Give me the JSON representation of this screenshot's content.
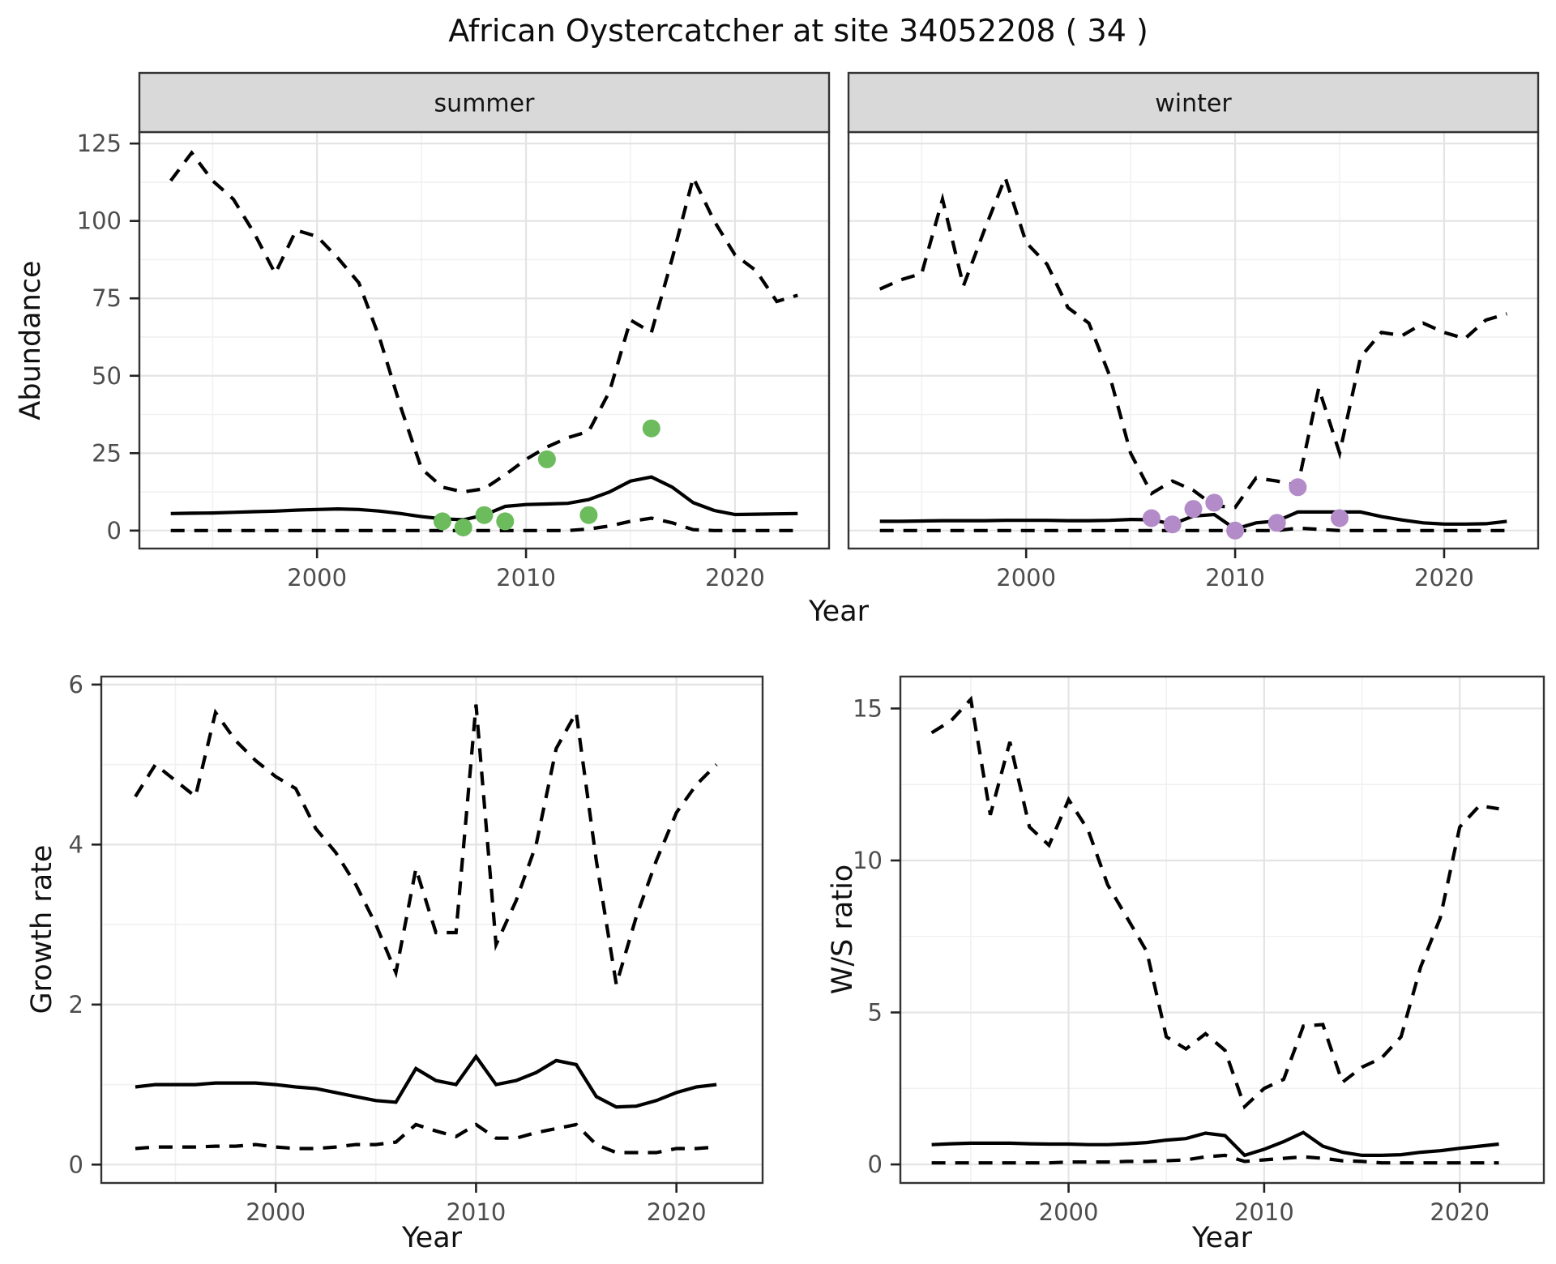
{
  "title": "African Oystercatcher at site 34052208 ( 34 )",
  "colors": {
    "line": "#000000",
    "summer_points": "#6cbb5c",
    "winter_points": "#b28bc8",
    "strip_fill": "#d9d9d9",
    "panel_border": "#333333",
    "grid_major": "#e4e4e4",
    "grid_minor": "#f1f1f1"
  },
  "chart_data": [
    {
      "id": "summer-abundance",
      "type": "line",
      "facet_label": "summer",
      "xlabel": "Year",
      "ylabel": "Abundance",
      "xlim": [
        1991.5,
        2024.5
      ],
      "ylim": [
        -5.8,
        128.7
      ],
      "xticks": [
        2000,
        2010,
        2020
      ],
      "yticks": [
        0,
        25,
        50,
        75,
        100,
        125
      ],
      "grid": "major+minor",
      "legend": "none",
      "x": [
        1993,
        1994,
        1995,
        1996,
        1997,
        1998,
        1999,
        2000,
        2001,
        2002,
        2003,
        2004,
        2005,
        2006,
        2007,
        2008,
        2009,
        2010,
        2011,
        2012,
        2013,
        2014,
        2015,
        2016,
        2017,
        2018,
        2019,
        2020,
        2021,
        2022,
        2023
      ],
      "series": [
        {
          "name": "upper-ci",
          "style": "dashed",
          "values": [
            113,
            122,
            113,
            107,
            96,
            83,
            97,
            95,
            88,
            80,
            62,
            40,
            20,
            14,
            12.5,
            13.5,
            18,
            23,
            27,
            30,
            32,
            45,
            68,
            64,
            88,
            114,
            100,
            89,
            84,
            74,
            76
          ]
        },
        {
          "name": "median",
          "style": "solid",
          "values": [
            5.5,
            5.6,
            5.7,
            5.9,
            6.1,
            6.3,
            6.6,
            6.8,
            7.0,
            6.8,
            6.3,
            5.5,
            4.5,
            3.8,
            3.5,
            5.0,
            7.8,
            8.4,
            8.6,
            8.8,
            10,
            12.5,
            16,
            17.3,
            14,
            9,
            6.5,
            5.2,
            5.3,
            5.4,
            5.5
          ]
        },
        {
          "name": "lower-ci",
          "style": "dashed",
          "values": [
            0,
            0,
            0,
            0,
            0,
            0,
            0,
            0,
            0,
            0,
            0,
            0,
            0,
            0,
            0,
            0,
            0,
            0,
            0,
            0,
            0.5,
            1.5,
            3,
            4,
            2.5,
            0.3,
            0,
            0,
            0,
            0,
            0
          ]
        }
      ],
      "points": {
        "name": "observed-count",
        "color": "#6cbb5c",
        "x": [
          2006,
          2007,
          2008,
          2009,
          2011,
          2013,
          2016
        ],
        "y": [
          3,
          1,
          5,
          3,
          23,
          5,
          33
        ]
      }
    },
    {
      "id": "winter-abundance",
      "type": "line",
      "facet_label": "winter",
      "xlabel": "Year",
      "ylabel": "Abundance",
      "xlim": [
        1991.5,
        2024.5
      ],
      "ylim": [
        -5.8,
        128.7
      ],
      "xticks": [
        2000,
        2010,
        2020
      ],
      "yticks": [
        0,
        25,
        50,
        75,
        100,
        125
      ],
      "grid": "major+minor",
      "legend": "none",
      "x": [
        1993,
        1994,
        1995,
        1996,
        1997,
        1998,
        1999,
        2000,
        2001,
        2002,
        2003,
        2004,
        2005,
        2006,
        2007,
        2008,
        2009,
        2010,
        2011,
        2012,
        2013,
        2014,
        2015,
        2016,
        2017,
        2018,
        2019,
        2020,
        2021,
        2022,
        2023
      ],
      "series": [
        {
          "name": "upper-ci",
          "style": "dashed",
          "values": [
            78,
            81,
            83,
            107,
            79,
            97,
            114,
            93,
            86,
            72,
            67,
            50,
            25,
            12,
            16,
            13,
            8,
            7.5,
            17,
            16,
            14.5,
            46,
            25,
            56,
            64,
            63,
            67,
            64,
            62,
            68,
            70
          ]
        },
        {
          "name": "median",
          "style": "solid",
          "values": [
            3,
            3,
            3.1,
            3.2,
            3.2,
            3.2,
            3.3,
            3.3,
            3.3,
            3.2,
            3.2,
            3.3,
            3.6,
            3.5,
            2.1,
            4.7,
            5.2,
            0.5,
            2.5,
            3.1,
            6,
            6,
            6,
            6,
            4.5,
            3.4,
            2.5,
            2.1,
            2.1,
            2.2,
            3
          ]
        },
        {
          "name": "lower-ci",
          "style": "dashed",
          "values": [
            0,
            0,
            0,
            0,
            0,
            0,
            0,
            0,
            0,
            0,
            0,
            0,
            0,
            0,
            0,
            0,
            0,
            0,
            0,
            0,
            0.8,
            0.4,
            0,
            0,
            0,
            0,
            0,
            0,
            0,
            0,
            0
          ]
        }
      ],
      "points": {
        "name": "observed-count",
        "color": "#b28bc8",
        "x": [
          2006,
          2007,
          2008,
          2009,
          2010,
          2012,
          2013,
          2015
        ],
        "y": [
          4,
          2,
          7,
          9,
          0,
          2.5,
          14,
          4
        ]
      }
    },
    {
      "id": "growth-rate",
      "type": "line",
      "facet_label": null,
      "xlabel": "Year",
      "ylabel": "Growth rate",
      "xlim": [
        1991.3,
        2024.3
      ],
      "ylim": [
        -0.23,
        6.1
      ],
      "xticks": [
        2000,
        2010,
        2020
      ],
      "yticks": [
        0,
        2,
        4,
        6
      ],
      "grid": "major+minor",
      "legend": "none",
      "x": [
        1993,
        1994,
        1995,
        1996,
        1997,
        1998,
        1999,
        2000,
        2001,
        2002,
        2003,
        2004,
        2005,
        2006,
        2007,
        2008,
        2009,
        2010,
        2011,
        2012,
        2013,
        2014,
        2015,
        2016,
        2017,
        2018,
        2019,
        2020,
        2021,
        2022
      ],
      "series": [
        {
          "name": "upper-ci",
          "style": "dashed",
          "values": [
            4.6,
            5.0,
            4.8,
            4.6,
            5.65,
            5.3,
            5.05,
            4.85,
            4.7,
            4.2,
            3.9,
            3.5,
            3.0,
            2.4,
            3.7,
            2.9,
            2.9,
            5.75,
            2.75,
            3.3,
            4.0,
            5.2,
            5.65,
            3.8,
            2.25,
            3.1,
            3.8,
            4.4,
            4.75,
            5.0
          ]
        },
        {
          "name": "median",
          "style": "solid",
          "values": [
            0.97,
            1.0,
            1.0,
            1.0,
            1.02,
            1.02,
            1.02,
            1.0,
            0.97,
            0.95,
            0.9,
            0.85,
            0.8,
            0.78,
            1.2,
            1.05,
            1.0,
            1.35,
            1.0,
            1.05,
            1.15,
            1.3,
            1.25,
            0.85,
            0.72,
            0.73,
            0.8,
            0.9,
            0.97,
            1.0
          ]
        },
        {
          "name": "lower-ci",
          "style": "dashed",
          "values": [
            0.2,
            0.22,
            0.22,
            0.22,
            0.23,
            0.23,
            0.25,
            0.22,
            0.2,
            0.2,
            0.22,
            0.25,
            0.25,
            0.28,
            0.5,
            0.42,
            0.35,
            0.5,
            0.33,
            0.33,
            0.4,
            0.45,
            0.5,
            0.25,
            0.15,
            0.15,
            0.15,
            0.2,
            0.2,
            0.22
          ]
        }
      ],
      "points": null
    },
    {
      "id": "ws-ratio",
      "type": "line",
      "facet_label": null,
      "xlabel": "Year",
      "ylabel": "W/S ratio",
      "xlim": [
        1991.4,
        2024.3
      ],
      "ylim": [
        -0.61,
        16.05
      ],
      "xticks": [
        2000,
        2010,
        2020
      ],
      "yticks": [
        0,
        5,
        10,
        15
      ],
      "grid": "major+minor",
      "legend": "none",
      "x": [
        1993,
        1994,
        1995,
        1996,
        1997,
        1998,
        1999,
        2000,
        2001,
        2002,
        2003,
        2004,
        2005,
        2006,
        2007,
        2008,
        2009,
        2010,
        2011,
        2012,
        2013,
        2014,
        2015,
        2016,
        2017,
        2018,
        2019,
        2020,
        2021,
        2022
      ],
      "series": [
        {
          "name": "upper-ci",
          "style": "dashed",
          "values": [
            14.2,
            14.6,
            15.3,
            11.5,
            13.9,
            11.1,
            10.5,
            12.0,
            11.0,
            9.2,
            8.1,
            7.0,
            4.2,
            3.8,
            4.3,
            3.75,
            1.9,
            2.5,
            2.8,
            4.55,
            4.6,
            2.7,
            3.2,
            3.5,
            4.2,
            6.5,
            8.1,
            11.1,
            11.8,
            11.7
          ]
        },
        {
          "name": "median",
          "style": "solid",
          "values": [
            0.65,
            0.68,
            0.7,
            0.7,
            0.7,
            0.68,
            0.67,
            0.67,
            0.65,
            0.65,
            0.68,
            0.72,
            0.8,
            0.85,
            1.03,
            0.95,
            0.3,
            0.5,
            0.75,
            1.05,
            0.6,
            0.4,
            0.3,
            0.3,
            0.32,
            0.4,
            0.45,
            0.53,
            0.6,
            0.67
          ]
        },
        {
          "name": "lower-ci",
          "style": "dashed",
          "values": [
            0.05,
            0.05,
            0.05,
            0.05,
            0.05,
            0.05,
            0.05,
            0.08,
            0.08,
            0.08,
            0.1,
            0.1,
            0.12,
            0.15,
            0.25,
            0.3,
            0.1,
            0.15,
            0.2,
            0.25,
            0.2,
            0.12,
            0.1,
            0.05,
            0.05,
            0.05,
            0.05,
            0.05,
            0.05,
            0.05
          ]
        }
      ],
      "points": null
    }
  ]
}
